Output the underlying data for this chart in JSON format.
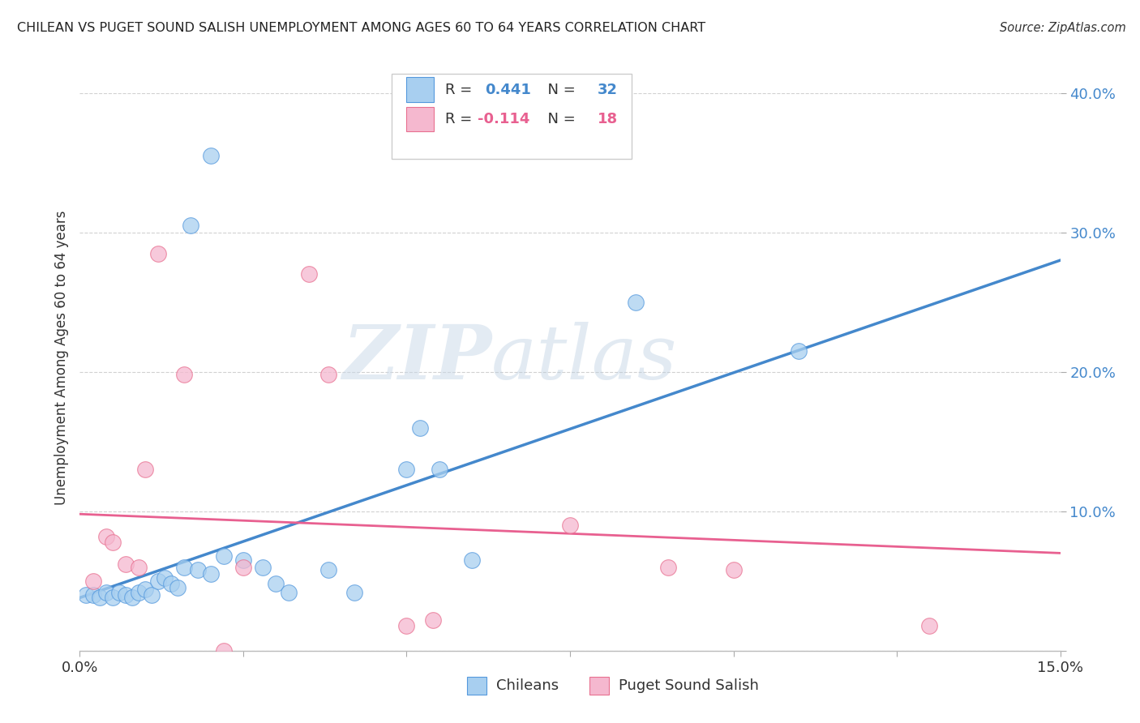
{
  "title": "CHILEAN VS PUGET SOUND SALISH UNEMPLOYMENT AMONG AGES 60 TO 64 YEARS CORRELATION CHART",
  "source": "Source: ZipAtlas.com",
  "ylabel_label": "Unemployment Among Ages 60 to 64 years",
  "xlim": [
    0.0,
    0.15
  ],
  "ylim": [
    0.0,
    0.42
  ],
  "x_ticks": [
    0.0,
    0.025,
    0.05,
    0.075,
    0.1,
    0.125,
    0.15
  ],
  "y_ticks": [
    0.0,
    0.1,
    0.2,
    0.3,
    0.4
  ],
  "blue_points": [
    [
      0.001,
      0.04
    ],
    [
      0.002,
      0.04
    ],
    [
      0.003,
      0.038
    ],
    [
      0.004,
      0.042
    ],
    [
      0.005,
      0.038
    ],
    [
      0.006,
      0.042
    ],
    [
      0.007,
      0.04
    ],
    [
      0.008,
      0.038
    ],
    [
      0.009,
      0.042
    ],
    [
      0.01,
      0.044
    ],
    [
      0.011,
      0.04
    ],
    [
      0.012,
      0.05
    ],
    [
      0.013,
      0.052
    ],
    [
      0.014,
      0.048
    ],
    [
      0.015,
      0.045
    ],
    [
      0.016,
      0.06
    ],
    [
      0.018,
      0.058
    ],
    [
      0.02,
      0.055
    ],
    [
      0.022,
      0.068
    ],
    [
      0.025,
      0.065
    ],
    [
      0.028,
      0.06
    ],
    [
      0.03,
      0.048
    ],
    [
      0.032,
      0.042
    ],
    [
      0.038,
      0.058
    ],
    [
      0.042,
      0.042
    ],
    [
      0.05,
      0.13
    ],
    [
      0.052,
      0.16
    ],
    [
      0.055,
      0.13
    ],
    [
      0.06,
      0.065
    ],
    [
      0.085,
      0.25
    ],
    [
      0.11,
      0.215
    ],
    [
      0.02,
      0.355
    ],
    [
      0.017,
      0.305
    ]
  ],
  "pink_points": [
    [
      0.002,
      0.05
    ],
    [
      0.004,
      0.082
    ],
    [
      0.005,
      0.078
    ],
    [
      0.007,
      0.062
    ],
    [
      0.009,
      0.06
    ],
    [
      0.01,
      0.13
    ],
    [
      0.012,
      0.285
    ],
    [
      0.016,
      0.198
    ],
    [
      0.022,
      0.0
    ],
    [
      0.035,
      0.27
    ],
    [
      0.038,
      0.198
    ],
    [
      0.05,
      0.018
    ],
    [
      0.054,
      0.022
    ],
    [
      0.075,
      0.09
    ],
    [
      0.09,
      0.06
    ],
    [
      0.1,
      0.058
    ],
    [
      0.13,
      0.018
    ],
    [
      0.025,
      0.06
    ]
  ],
  "blue_line_x": [
    0.0,
    0.15
  ],
  "blue_line_y": [
    0.038,
    0.28
  ],
  "pink_line_x": [
    0.0,
    0.15
  ],
  "pink_line_y": [
    0.098,
    0.07
  ],
  "blue_color": "#a8cff0",
  "pink_color": "#f5b8cf",
  "blue_edge_color": "#5599dd",
  "pink_edge_color": "#e87090",
  "blue_line_color": "#4488cc",
  "pink_line_color": "#e86090",
  "legend_label_blue": "Chileans",
  "legend_label_pink": "Puget Sound Salish",
  "watermark_zip": "ZIP",
  "watermark_atlas": "atlas",
  "background_color": "#ffffff",
  "grid_color": "#cccccc",
  "title_color": "#222222",
  "right_tick_color": "#4488cc"
}
